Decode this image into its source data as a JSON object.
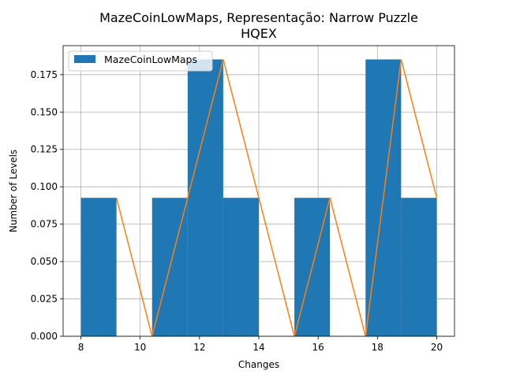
{
  "chart_data": {
    "type": "bar",
    "title_line1": "MazeCoinLowMaps, Representação: Narrow Puzzle",
    "title_line2": "HQEX",
    "xlabel": "Changes",
    "ylabel": "Number of Levels",
    "xlim": [
      7.4,
      20.6
    ],
    "ylim": [
      0,
      0.1944
    ],
    "xticks": [
      8,
      10,
      12,
      14,
      16,
      18,
      20
    ],
    "yticks": [
      0.0,
      0.025,
      0.05,
      0.075,
      0.1,
      0.125,
      0.15,
      0.175
    ],
    "ytick_labels": [
      "0.000",
      "0.025",
      "0.050",
      "0.075",
      "0.100",
      "0.125",
      "0.150",
      "0.175"
    ],
    "grid": true,
    "legend": {
      "placement": "top-left",
      "entries": [
        "MazeCoinLowMaps"
      ]
    },
    "colors": {
      "bars": "#1f77b4",
      "line": "#ff7f0e",
      "grid": "#b0b0b0"
    },
    "series": [
      {
        "kind": "histogram",
        "name": "MazeCoinLowMaps",
        "bins": [
          8.0,
          9.2,
          10.4,
          11.6,
          12.8,
          14.0,
          15.2,
          16.4,
          17.6,
          18.8,
          20.0
        ],
        "values": [
          0.0926,
          0,
          0.0926,
          0.1852,
          0.0926,
          0,
          0.0926,
          0,
          0.1852,
          0.0926
        ]
      },
      {
        "kind": "line",
        "x": [
          9.2,
          10.4,
          12.8,
          14.0,
          15.2,
          16.4,
          17.6,
          18.8,
          20.0
        ],
        "y": [
          0.0926,
          0,
          0.1852,
          0.0926,
          0,
          0.0926,
          0,
          0.1852,
          0.0926
        ]
      }
    ]
  }
}
